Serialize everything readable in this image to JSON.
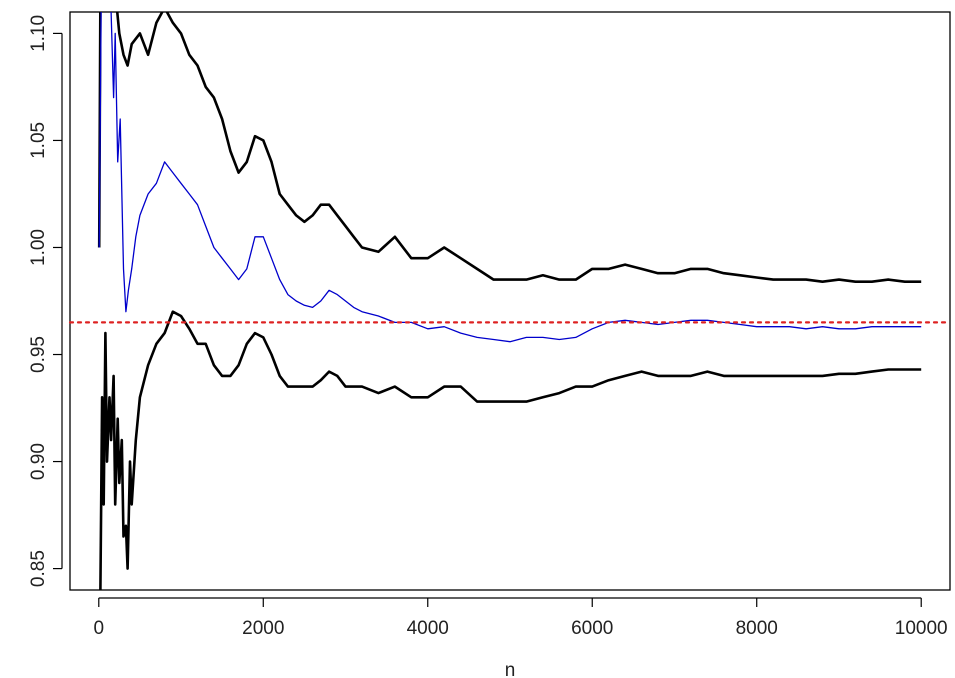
{
  "chart_data": {
    "type": "line",
    "title": "",
    "xlabel": "n",
    "ylabel": "",
    "xlim": [
      -350,
      10350
    ],
    "ylim": [
      0.84,
      1.11
    ],
    "x_ticks": [
      0,
      2000,
      4000,
      6000,
      8000,
      10000
    ],
    "x_tick_labels": [
      "0",
      "2000",
      "4000",
      "6000",
      "8000",
      "10000"
    ],
    "y_ticks": [
      0.85,
      0.9,
      0.95,
      1.0,
      1.05,
      1.1
    ],
    "y_tick_labels": [
      "0.85",
      "0.90",
      "0.95",
      "1.00",
      "1.05",
      "1.10"
    ],
    "grid": false,
    "legend": "none",
    "reference_line": {
      "y": 0.965,
      "color": "#dd2222",
      "style": "dotted"
    },
    "series": [
      {
        "role": "upper-band",
        "color": "#000000",
        "x": [
          5,
          20,
          60,
          100,
          150,
          200,
          250,
          300,
          350,
          400,
          500,
          600,
          700,
          800,
          900,
          1000,
          1100,
          1200,
          1300,
          1400,
          1500,
          1600,
          1700,
          1800,
          1900,
          2000,
          2100,
          2200,
          2300,
          2400,
          2500,
          2600,
          2700,
          2800,
          2900,
          3000,
          3100,
          3200,
          3400,
          3600,
          3800,
          4000,
          4200,
          4400,
          4600,
          4800,
          5000,
          5200,
          5400,
          5600,
          5800,
          6000,
          6200,
          6400,
          6600,
          6800,
          7000,
          7200,
          7400,
          7600,
          7800,
          8000,
          8200,
          8400,
          8600,
          8800,
          9000,
          9200,
          9400,
          9600,
          9800,
          10000
        ],
        "values": [
          1.0,
          1.12,
          1.12,
          1.12,
          1.12,
          1.12,
          1.1,
          1.09,
          1.085,
          1.095,
          1.1,
          1.09,
          1.105,
          1.112,
          1.105,
          1.1,
          1.09,
          1.085,
          1.075,
          1.07,
          1.06,
          1.045,
          1.035,
          1.04,
          1.052,
          1.05,
          1.04,
          1.025,
          1.02,
          1.015,
          1.012,
          1.015,
          1.02,
          1.02,
          1.015,
          1.01,
          1.005,
          1.0,
          0.998,
          1.005,
          0.995,
          0.995,
          1.0,
          0.995,
          0.99,
          0.985,
          0.985,
          0.985,
          0.987,
          0.985,
          0.985,
          0.99,
          0.99,
          0.992,
          0.99,
          0.988,
          0.988,
          0.99,
          0.99,
          0.988,
          0.987,
          0.986,
          0.985,
          0.985,
          0.985,
          0.984,
          0.985,
          0.984,
          0.984,
          0.985,
          0.984,
          0.984
        ]
      },
      {
        "role": "estimate",
        "color": "#0000cc",
        "x": [
          5,
          30,
          60,
          100,
          150,
          180,
          200,
          230,
          260,
          300,
          330,
          360,
          400,
          450,
          500,
          600,
          700,
          800,
          900,
          1000,
          1100,
          1200,
          1300,
          1400,
          1500,
          1600,
          1700,
          1800,
          1900,
          2000,
          2100,
          2200,
          2300,
          2400,
          2500,
          2600,
          2700,
          2800,
          2900,
          3000,
          3100,
          3200,
          3400,
          3600,
          3800,
          4000,
          4200,
          4400,
          4600,
          4800,
          5000,
          5200,
          5400,
          5600,
          5800,
          6000,
          6200,
          6400,
          6600,
          6800,
          7000,
          7200,
          7400,
          7600,
          7800,
          8000,
          8200,
          8400,
          8600,
          8800,
          9000,
          9200,
          9400,
          9600,
          9800,
          10000
        ],
        "values": [
          1.0,
          1.12,
          1.12,
          1.12,
          1.11,
          1.07,
          1.1,
          1.04,
          1.06,
          0.99,
          0.97,
          0.98,
          0.99,
          1.005,
          1.015,
          1.025,
          1.03,
          1.04,
          1.035,
          1.03,
          1.025,
          1.02,
          1.01,
          1.0,
          0.995,
          0.99,
          0.985,
          0.99,
          1.005,
          1.005,
          0.995,
          0.985,
          0.978,
          0.975,
          0.973,
          0.972,
          0.975,
          0.98,
          0.978,
          0.975,
          0.972,
          0.97,
          0.968,
          0.965,
          0.965,
          0.962,
          0.963,
          0.96,
          0.958,
          0.957,
          0.956,
          0.958,
          0.958,
          0.957,
          0.958,
          0.962,
          0.965,
          0.966,
          0.965,
          0.964,
          0.965,
          0.966,
          0.966,
          0.965,
          0.964,
          0.963,
          0.963,
          0.963,
          0.962,
          0.963,
          0.962,
          0.962,
          0.963,
          0.963,
          0.963,
          0.963
        ]
      },
      {
        "role": "lower-band",
        "color": "#000000",
        "x": [
          5,
          20,
          40,
          60,
          80,
          100,
          130,
          150,
          180,
          200,
          230,
          250,
          280,
          300,
          330,
          350,
          380,
          400,
          450,
          500,
          600,
          700,
          800,
          900,
          1000,
          1100,
          1200,
          1300,
          1400,
          1500,
          1600,
          1700,
          1800,
          1900,
          2000,
          2100,
          2200,
          2300,
          2400,
          2500,
          2600,
          2700,
          2800,
          2900,
          3000,
          3100,
          3200,
          3400,
          3600,
          3800,
          4000,
          4200,
          4400,
          4600,
          4800,
          5000,
          5200,
          5400,
          5600,
          5800,
          6000,
          6200,
          6400,
          6600,
          6800,
          7000,
          7200,
          7400,
          7600,
          7800,
          8000,
          8200,
          8400,
          8600,
          8800,
          9000,
          9200,
          9400,
          9600,
          9800,
          10000
        ],
        "values": [
          0.82,
          0.84,
          0.93,
          0.88,
          0.96,
          0.9,
          0.93,
          0.91,
          0.94,
          0.88,
          0.92,
          0.89,
          0.91,
          0.865,
          0.87,
          0.85,
          0.9,
          0.88,
          0.91,
          0.93,
          0.945,
          0.955,
          0.96,
          0.97,
          0.968,
          0.962,
          0.955,
          0.955,
          0.945,
          0.94,
          0.94,
          0.945,
          0.955,
          0.96,
          0.958,
          0.95,
          0.94,
          0.935,
          0.935,
          0.935,
          0.935,
          0.938,
          0.942,
          0.94,
          0.935,
          0.935,
          0.935,
          0.932,
          0.935,
          0.93,
          0.93,
          0.935,
          0.935,
          0.928,
          0.928,
          0.928,
          0.928,
          0.93,
          0.932,
          0.935,
          0.935,
          0.938,
          0.94,
          0.942,
          0.94,
          0.94,
          0.94,
          0.942,
          0.94,
          0.94,
          0.94,
          0.94,
          0.94,
          0.94,
          0.94,
          0.941,
          0.941,
          0.942,
          0.943,
          0.943,
          0.943
        ]
      }
    ]
  }
}
